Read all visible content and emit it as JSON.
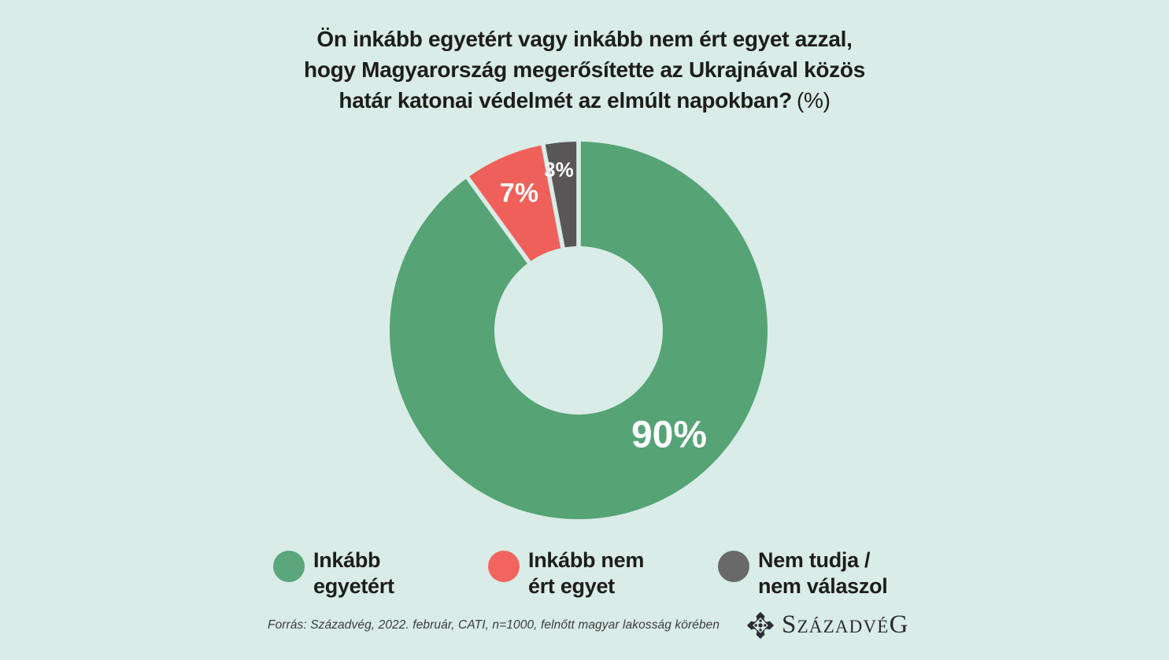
{
  "title": {
    "line1": "Ön inkább egyetért vagy inkább nem ért egyet azzal,",
    "line2": "hogy Magyarország megerősítette az Ukrajnával közös",
    "line3": "határ katonai védelmét az elmúlt napokban?",
    "suffix": "(%)"
  },
  "chart_data": {
    "type": "pie",
    "subtype": "donut",
    "unit": "%",
    "start_angle_deg": 0,
    "direction": "clockwise",
    "legend_position": "bottom",
    "slices": [
      {
        "label": "Inkább egyetért",
        "value": 90,
        "display": "90%",
        "color": "#56a376"
      },
      {
        "label": "Inkább nem ért egyet",
        "value": 7,
        "display": "7%",
        "color": "#f0605a"
      },
      {
        "label": "Nem tudja / nem válaszol",
        "value": 3,
        "display": "3%",
        "color": "#585656"
      }
    ]
  },
  "legend": {
    "items": [
      {
        "line1": "Inkább",
        "line2": "egyetért",
        "color": "#5ba67c"
      },
      {
        "line1": "Inkább nem",
        "line2": "ért egyet",
        "color": "#f2655e"
      },
      {
        "line1": "Nem tudja /",
        "line2": "nem válaszol",
        "color": "#696969"
      }
    ]
  },
  "footer": {
    "source": "Forrás: Századvég, 2022. február, CATI, n=1000, felnőtt magyar lakosság körében",
    "logo": {
      "initial": "S",
      "middle": "ZÁZADVÉ",
      "final": "G"
    }
  },
  "colors": {
    "background": "#d9ece7",
    "title_text": "#1d1d1b",
    "slice_label_text": "#ffffff",
    "source_text": "#3c3c3c",
    "logo_text": "#2b2b33"
  }
}
